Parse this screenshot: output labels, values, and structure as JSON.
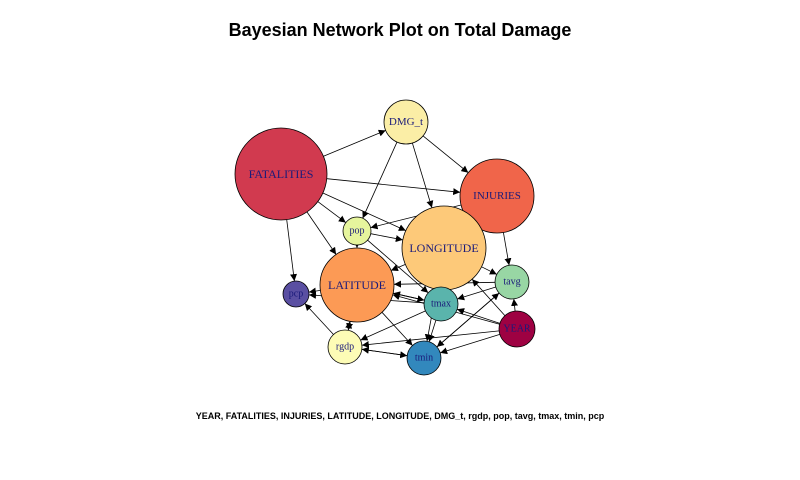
{
  "title": "Bayesian Network Plot on Total Damage",
  "caption": "YEAR, FATALITIES, INJURIES, LATITUDE, LONGITUDE, DMG_t, rgdp, pop, tavg, tmax, tmin, pcp",
  "nodes": [
    {
      "id": "DMG_t",
      "label": "DMG_t",
      "color": "#fbeea6"
    },
    {
      "id": "FATALITIES",
      "label": "FATALITIES",
      "color": "#d13a4f"
    },
    {
      "id": "INJURIES",
      "label": "INJURIES",
      "color": "#f0654a"
    },
    {
      "id": "pop",
      "label": "pop",
      "color": "#e6f59d"
    },
    {
      "id": "LONGITUDE",
      "label": "LONGITUDE",
      "color": "#fdc979"
    },
    {
      "id": "LATITUDE",
      "label": "LATITUDE",
      "color": "#fc9a55"
    },
    {
      "id": "pcp",
      "label": "pcp",
      "color": "#5a4fa2"
    },
    {
      "id": "tavg",
      "label": "tavg",
      "color": "#98d6a4"
    },
    {
      "id": "tmax",
      "label": "tmax",
      "color": "#5ab4ac"
    },
    {
      "id": "YEAR",
      "label": "YEAR",
      "color": "#9e0142"
    },
    {
      "id": "rgdp",
      "label": "rgdp",
      "color": "#fdfcb6"
    },
    {
      "id": "tmin",
      "label": "tmin",
      "color": "#3288bd"
    }
  ],
  "edges": [
    [
      "FATALITIES",
      "DMG_t"
    ],
    [
      "FATALITIES",
      "INJURIES"
    ],
    [
      "FATALITIES",
      "pop"
    ],
    [
      "FATALITIES",
      "LATITUDE"
    ],
    [
      "FATALITIES",
      "pcp"
    ],
    [
      "FATALITIES",
      "LONGITUDE"
    ],
    [
      "DMG_t",
      "INJURIES"
    ],
    [
      "DMG_t",
      "pop"
    ],
    [
      "DMG_t",
      "LONGITUDE"
    ],
    [
      "INJURIES",
      "LONGITUDE"
    ],
    [
      "INJURIES",
      "tavg"
    ],
    [
      "INJURIES",
      "pop"
    ],
    [
      "pop",
      "LATITUDE"
    ],
    [
      "pop",
      "tmax"
    ],
    [
      "pop",
      "LONGITUDE"
    ],
    [
      "LONGITUDE",
      "LATITUDE"
    ],
    [
      "LONGITUDE",
      "tavg"
    ],
    [
      "LONGITUDE",
      "tmax"
    ],
    [
      "LONGITUDE",
      "tmin"
    ],
    [
      "LATITUDE",
      "pcp"
    ],
    [
      "LATITUDE",
      "tmax"
    ],
    [
      "LATITUDE",
      "tmin"
    ],
    [
      "LATITUDE",
      "rgdp"
    ],
    [
      "tavg",
      "tmax"
    ],
    [
      "tavg",
      "tmin"
    ],
    [
      "tavg",
      "LATITUDE"
    ],
    [
      "YEAR",
      "tavg"
    ],
    [
      "YEAR",
      "tmax"
    ],
    [
      "YEAR",
      "tmin"
    ],
    [
      "YEAR",
      "rgdp"
    ],
    [
      "YEAR",
      "LATITUDE"
    ],
    [
      "YEAR",
      "LONGITUDE"
    ],
    [
      "tmax",
      "tmin"
    ],
    [
      "tmax",
      "rgdp"
    ],
    [
      "tmax",
      "pcp"
    ],
    [
      "tmax",
      "LATITUDE"
    ],
    [
      "rgdp",
      "tmin"
    ],
    [
      "rgdp",
      "pcp"
    ],
    [
      "rgdp",
      "LATITUDE"
    ],
    [
      "tmin",
      "rgdp"
    ],
    [
      "tmin",
      "tavg"
    ]
  ]
}
